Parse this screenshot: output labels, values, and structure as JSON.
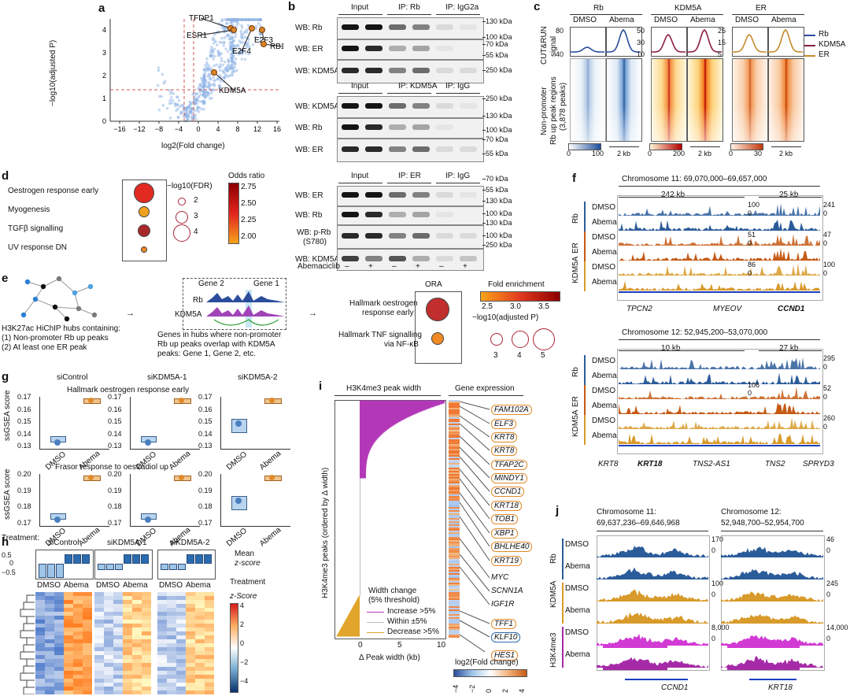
{
  "a": {
    "letter": "a",
    "ylabel": "−log10(adjusted P)",
    "xlabel": "log2(Fold change)",
    "xticks": [
      "−16",
      "−12",
      "−8",
      "−4",
      "0",
      "4",
      "8",
      "12",
      "16"
    ],
    "yticks": [
      "0",
      "1",
      "2",
      "3",
      "4"
    ],
    "labels": [
      "TFDP1",
      "ESR1",
      "E2F4",
      "E2F3",
      "RB1",
      "KDM5A"
    ]
  },
  "b": {
    "letter": "b",
    "block1": {
      "heads": [
        "Input",
        "IP: Rb",
        "IP: IgG2a"
      ],
      "rows": [
        "WB: Rb",
        "WB: ER",
        "WB: KDM5A"
      ],
      "kda": [
        "130 kDa",
        "100 kDa",
        "70 kDa",
        "55 kDa",
        "250 kDa"
      ]
    },
    "block2": {
      "heads": [
        "Input",
        "IP: KDM5A",
        "IP: IgG"
      ],
      "rows": [
        "WB: KDM5A",
        "WB: Rb",
        "WB: ER"
      ],
      "kda": [
        "250 kDa",
        "130 kDa",
        "100 kDa",
        "70 kDa",
        "55 kDa"
      ]
    },
    "block3": {
      "heads": [
        "Input",
        "IP: ER",
        "IP: IgG"
      ],
      "rows": [
        "WB: ER",
        "WB: Rb",
        "WB: p-Rb",
        "(S780)",
        "WB: KDM5A"
      ],
      "kda": [
        "70 kDa",
        "55 kDa",
        "130 kDa",
        "100 kDa",
        "130 kDa",
        "100 kDa",
        "250 kDa"
      ]
    },
    "treat_label": "Abemaciclib",
    "treat_signs": [
      "–",
      "+",
      "–",
      "+",
      "–",
      "+"
    ]
  },
  "c": {
    "letter": "c",
    "cols": [
      "Rb",
      "KDM5A",
      "ER"
    ],
    "sub": [
      "DMSO",
      "Abema"
    ],
    "ylabel1": "CUT&RUN",
    "ylabel2": "signal",
    "rowlabel1": "Non-promoter",
    "rowlabel2": "Rb up peak regions",
    "rowlabel3": "(3,878 peaks)",
    "yt_rb": [
      "80",
      "40"
    ],
    "yt_kd": [
      "50",
      "30",
      "10"
    ],
    "yt_er": [
      "25",
      "15",
      "5"
    ],
    "scale_rb": [
      "0",
      "100"
    ],
    "scale_kd": [
      "0",
      "200"
    ],
    "scale_er": [
      "0",
      "30"
    ],
    "kb": "2 kb",
    "legend": [
      {
        "name": "Rb",
        "color": "#2b4d9c"
      },
      {
        "name": "KDM5A",
        "color": "#8c1d40"
      },
      {
        "name": "ER",
        "color": "#c58a2c"
      }
    ]
  },
  "d": {
    "letter": "d",
    "terms": [
      "Oestrogen response early",
      "Myogenesis",
      "TGFβ signalling",
      "UV response DN"
    ],
    "fdr_title": "−log10(FDR)",
    "fdr_vals": [
      "2",
      "3",
      "4"
    ],
    "or_title": "Odds ratio",
    "or_vals": [
      "2.75",
      "2.50",
      "2.25",
      "2.00"
    ]
  },
  "e": {
    "letter": "e",
    "hub_text": [
      "H3K27ac HiChIP hubs containing:",
      "(1) Non-promoter Rb up peaks",
      "(2) At least one ER peak"
    ],
    "gene_text": [
      "Genes in hubs where non-promoter",
      "Rb up peaks overlap with KDM5A",
      "peaks: Gene 1, Gene 2, etc."
    ],
    "gene2": "Gene 2",
    "gene1": "Gene 1",
    "rb": "Rb",
    "kdm5a": "KDM5A",
    "ora": "ORA",
    "ora_terms": [
      "Hallmark oestrogen",
      "response early",
      "Hallmark TNF signalling",
      "via NF-κB"
    ],
    "fe_title": "Fold enrichment",
    "fe_vals": [
      "2.5",
      "3.0",
      "3.5"
    ],
    "adjp_title": "−log10(adjusted P)",
    "adjp_vals": [
      "3",
      "4",
      "5"
    ]
  },
  "f": {
    "letter": "f",
    "chr1": "Chromosome 11: 69,070,000–69,657,000",
    "span1a": "242 kb",
    "span1b": "25 kb",
    "chr2": "Chromosome 12: 52,945,200–53,070,000",
    "span2a": "10 kb",
    "span2b": "27 kb",
    "groups": [
      "Rb",
      "ER",
      "KDM5A"
    ],
    "conds": [
      "DMSO",
      "Abema"
    ],
    "scales1": [
      "100",
      "0",
      "51",
      "0",
      "86",
      "0"
    ],
    "scales1b": [
      "241",
      "0",
      "47",
      "0",
      "100",
      "0"
    ],
    "scales2": [
      "106",
      "0"
    ],
    "scales2b": [
      "295",
      "0",
      "52",
      "0",
      "260",
      "0"
    ],
    "genes1": [
      "TPCN2",
      "MYEOV",
      "CCND1"
    ],
    "genes2": [
      "KRT8",
      "KRT18",
      "TNS2-AS1",
      "TNS2",
      "SPRYD3"
    ]
  },
  "g": {
    "letter": "g",
    "cols": [
      "siControl",
      "siKDM5A-1",
      "siKDM5A-2"
    ],
    "title1": "Hallmark oestrogen response early",
    "title2": "Frasor response to oestradiol up",
    "ylabel": "ssGSEA score",
    "yt1": [
      "0.17",
      "0.16",
      "0.15",
      "0.14",
      "0.13"
    ],
    "yt2": [
      "0.20",
      "0.19",
      "0.18",
      "0.17"
    ],
    "xcat": [
      "DMSO",
      "Abema"
    ],
    "treatment": "Treatment:"
  },
  "h": {
    "letter": "h",
    "cols": [
      "siControl",
      "siKDM5A-1",
      "siKDM5A-2"
    ],
    "yt": [
      "0.5",
      "0",
      "−0.5"
    ],
    "mean_label1": "Mean",
    "mean_label2": "z-score",
    "treatment": "Treatment",
    "xcat": [
      "DMSO",
      "Abema"
    ],
    "z_title": "z-Score",
    "z_vals": [
      "4",
      "2",
      "0",
      "−2",
      "−4"
    ]
  },
  "i": {
    "letter": "i",
    "head1": "H3K4me3 peak width",
    "head2": "Gene expression",
    "ylabel": "H3K4me3 peaks (ordered by Δ width)",
    "xlabel": "Δ Peak width (kb)",
    "xt": [
      "0",
      "5",
      "10"
    ],
    "legend_title1": "Width change",
    "legend_title2": "(5% threshold)",
    "legend": [
      "Increase >5%",
      "Within ±5%",
      "Decrease >5%"
    ],
    "genes": [
      "FAM102A",
      "ELF3",
      "KRT8",
      "KRT8",
      "TFAP2C",
      "MINDY1",
      "CCND1",
      "KRT18",
      "TOB1",
      "XBP1",
      "BHLHE40",
      "KRT19",
      "MYC",
      "SCNN1A",
      "IGF1R",
      "TFF1",
      "KLF10",
      "HES1"
    ],
    "fc_title": "log2(Fold change)",
    "fc_vals": [
      "−4",
      "−2",
      "0",
      "2",
      "4"
    ]
  },
  "j": {
    "letter": "j",
    "chr1a": "Chromosome 11:",
    "chr1b": "69,637,236–69,646,968",
    "chr2a": "Chromosome 12:",
    "chr2b": "52,948,700–52,954,700",
    "groups": [
      "Rb",
      "KDM5A",
      "H3K4me3"
    ],
    "conds": [
      "DMSO",
      "Abema"
    ],
    "s1": [
      "170",
      "0",
      "100",
      "0",
      "8,000",
      "0"
    ],
    "s2": [
      "46",
      "0",
      "245",
      "0",
      "14,000",
      "0"
    ],
    "genes": [
      "CCND1",
      "KRT18"
    ]
  }
}
